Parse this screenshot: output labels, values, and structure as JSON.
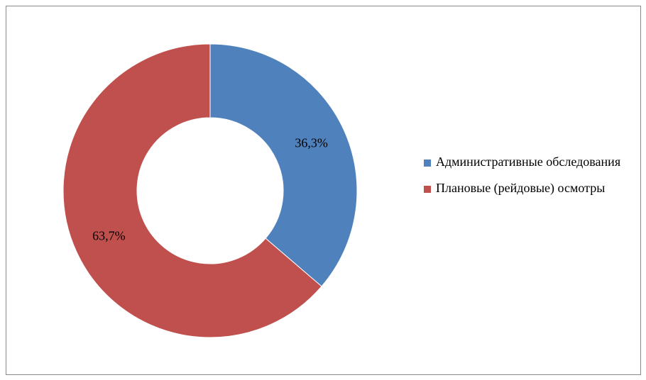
{
  "chart_data": {
    "type": "donut",
    "categories": [
      "Административные обследования",
      "Плановые (рейдовые) осмотры"
    ],
    "values": [
      36.3,
      63.7
    ],
    "value_labels": [
      "36,3%",
      "63,7%"
    ],
    "colors": [
      "#4f81bd",
      "#c0504d"
    ],
    "legend": "right"
  }
}
